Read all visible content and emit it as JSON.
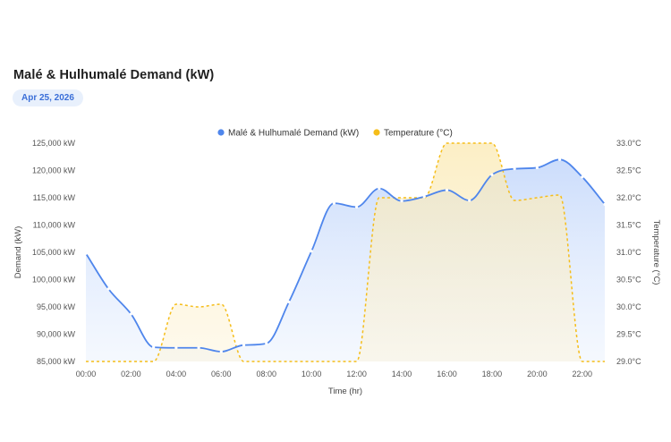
{
  "header": {
    "title": "Malé & Hulhumalé Demand (kW)",
    "date": "Apr 25, 2026"
  },
  "colors": {
    "demand": "#4f86ec",
    "temperature": "#f5bd19"
  },
  "chart_data": {
    "type": "line",
    "title": "",
    "xlabel": "Time (hr)",
    "ylabel": "Demand (kW)",
    "y2label": "Temperature (°C)",
    "x_ticks": [
      "00:00",
      "02:00",
      "04:00",
      "06:00",
      "08:00",
      "10:00",
      "12:00",
      "14:00",
      "16:00",
      "18:00",
      "20:00",
      "22:00"
    ],
    "y_ticks": [
      "85,000 kW",
      "90,000 kW",
      "95,000 kW",
      "100,000 kW",
      "105,000 kW",
      "110,000 kW",
      "115,000 kW",
      "120,000 kW",
      "125,000 kW"
    ],
    "y2_ticks": [
      "29.0°C",
      "29.5°C",
      "30.0°C",
      "30.5°C",
      "31.0°C",
      "31.5°C",
      "32.0°C",
      "32.5°C",
      "33.0°C"
    ],
    "xlim": [
      0,
      23
    ],
    "ylim": [
      85000,
      125000
    ],
    "y2lim": [
      29.0,
      33.0
    ],
    "grid": false,
    "legend_position": "top",
    "series": [
      {
        "name": "Malé & Hulhumalé Demand (kW)",
        "axis": "left",
        "style": "solid, area fill",
        "x": [
          0,
          1,
          2,
          3,
          4,
          5,
          6,
          7,
          8,
          9,
          10,
          11,
          12,
          13,
          14,
          15,
          16,
          17,
          18,
          19,
          20,
          21,
          22,
          23
        ],
        "values": [
          104800,
          98300,
          93700,
          87600,
          87500,
          87500,
          86800,
          88000,
          88300,
          95900,
          105200,
          114000,
          113300,
          116700,
          114400,
          115200,
          116400,
          114500,
          119200,
          120300,
          120500,
          122000,
          118800,
          113800
        ]
      },
      {
        "name": "Temperature (°C)",
        "axis": "right",
        "style": "dashed, area fill",
        "x": [
          0,
          1,
          2,
          3,
          4,
          5,
          6,
          7,
          8,
          9,
          10,
          11,
          12,
          13,
          14,
          15,
          16,
          17,
          18,
          19,
          20,
          21,
          22,
          23
        ],
        "values": [
          29.0,
          29.0,
          29.0,
          29.0,
          30.05,
          30.0,
          30.05,
          29.0,
          29.0,
          29.0,
          29.0,
          29.0,
          29.0,
          32.0,
          32.0,
          32.0,
          33.0,
          33.0,
          33.0,
          31.95,
          32.0,
          32.05,
          29.0,
          29.0
        ]
      }
    ]
  }
}
